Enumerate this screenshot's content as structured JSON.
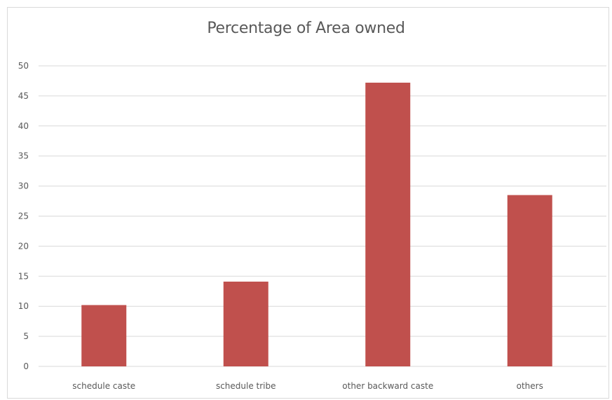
{
  "chart_data": {
    "type": "bar",
    "title": "Percentage of Area owned",
    "xlabel": "",
    "ylabel": "",
    "categories": [
      "schedule caste",
      "schedule tribe",
      "other backward caste",
      "others"
    ],
    "series": [
      {
        "values": [
          10.2,
          14.1,
          47.2,
          28.5
        ],
        "color": "#c0504d"
      }
    ],
    "ylim": [
      0,
      50
    ],
    "yticks": [
      0,
      5,
      10,
      15,
      20,
      25,
      30,
      35,
      40,
      45,
      50
    ],
    "ytick_labels": [
      "0",
      "5",
      "10",
      "15",
      "20",
      "25",
      "30",
      "35",
      "40",
      "45",
      "50"
    ],
    "grid": true,
    "gridline_color": "#d9d9d9",
    "legend": "none"
  }
}
